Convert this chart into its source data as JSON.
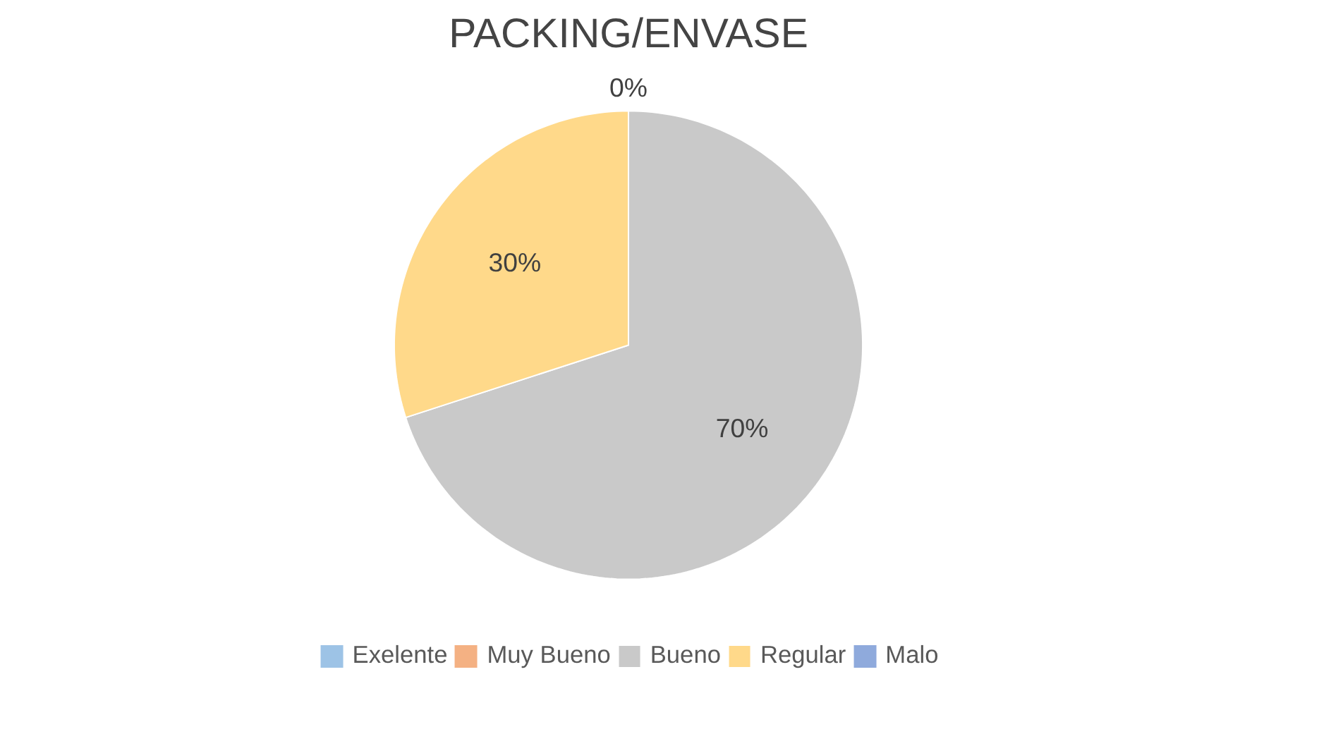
{
  "chart_data": {
    "type": "pie",
    "title": "PACKING/ENVASE",
    "categories": [
      "Exelente",
      "Muy Bueno",
      "Bueno",
      "Regular",
      "Malo"
    ],
    "values": [
      0,
      0,
      70,
      30,
      0
    ],
    "colors": [
      "#9dc3e6",
      "#f4b183",
      "#c9c9c9",
      "#ffd98a",
      "#8faadc"
    ],
    "value_labels": [
      "0%",
      null,
      "70%",
      "30%",
      null
    ],
    "legend": "bottom"
  }
}
